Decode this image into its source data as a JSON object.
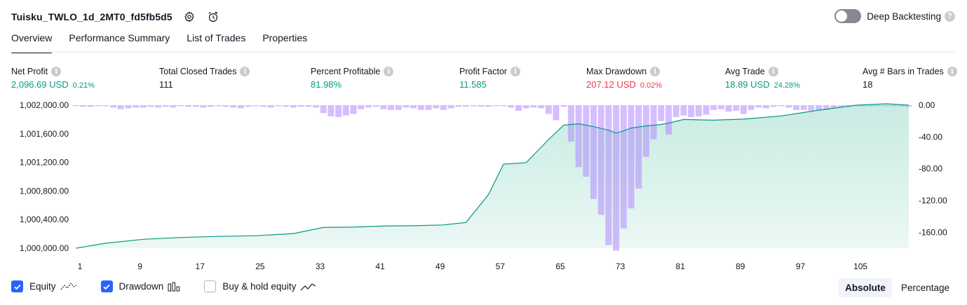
{
  "header": {
    "title": "Tuisku_TWLO_1d_2MT0_fd5fb5d5",
    "deep_backtesting_label": "Deep Backtesting"
  },
  "tabs": [
    {
      "label": "Overview"
    },
    {
      "label": "Performance Summary"
    },
    {
      "label": "List of Trades"
    },
    {
      "label": "Properties"
    }
  ],
  "stats": {
    "net_profit": {
      "label": "Net Profit",
      "value": "2,096.69 USD",
      "pct": "0.21%"
    },
    "total_closed_trades": {
      "label": "Total Closed Trades",
      "value": "111"
    },
    "percent_profitable": {
      "label": "Percent Profitable",
      "value": "81.98%"
    },
    "profit_factor": {
      "label": "Profit Factor",
      "value": "11.585"
    },
    "max_drawdown": {
      "label": "Max Drawdown",
      "value": "207.12 USD",
      "pct": "0.02%"
    },
    "avg_trade": {
      "label": "Avg Trade",
      "value": "18.89 USD",
      "pct": "24.28%"
    },
    "avg_bars": {
      "label": "Avg # Bars in Trades",
      "value": "18"
    }
  },
  "controls": {
    "equity_label": "Equity",
    "drawdown_label": "Drawdown",
    "buy_hold_label": "Buy & hold equity",
    "absolute_label": "Absolute",
    "percentage_label": "Percentage"
  },
  "colors": {
    "green": "#089981",
    "red": "#f23645",
    "accent": "#2962ff",
    "drawdown": "#b388ff",
    "equity_fill": "#c8ebe2"
  },
  "chart_data": {
    "type": "area",
    "x_ticks": [
      "1",
      "9",
      "17",
      "25",
      "33",
      "41",
      "49",
      "57",
      "65",
      "73",
      "81",
      "89",
      "97",
      "105"
    ],
    "left_ticks": [
      "1,002,000.00",
      "1,001,600.00",
      "1,001,200.00",
      "1,000,800.00",
      "1,000,400.00",
      "1,000,000.00"
    ],
    "right_ticks": [
      "0.00",
      "-40.00",
      "-80.00",
      "-120.00",
      "-160.00"
    ],
    "y_left_range": [
      1000000,
      1002000
    ],
    "y_right_range": [
      -180,
      0
    ],
    "x_range": [
      1,
      112
    ],
    "equity": [
      [
        1,
        1000000
      ],
      [
        5,
        1000070
      ],
      [
        10,
        1000125
      ],
      [
        15,
        1000150
      ],
      [
        20,
        1000165
      ],
      [
        25,
        1000175
      ],
      [
        30,
        1000205
      ],
      [
        34,
        1000290
      ],
      [
        38,
        1000295
      ],
      [
        42,
        1000310
      ],
      [
        46,
        1000315
      ],
      [
        50,
        1000325
      ],
      [
        53,
        1000360
      ],
      [
        56,
        1000750
      ],
      [
        58,
        1001175
      ],
      [
        61,
        1001195
      ],
      [
        64,
        1001520
      ],
      [
        66,
        1001720
      ],
      [
        68,
        1001740
      ],
      [
        70,
        1001700
      ],
      [
        72,
        1001650
      ],
      [
        73,
        1001610
      ],
      [
        74,
        1001640
      ],
      [
        75,
        1001680
      ],
      [
        77,
        1001710
      ],
      [
        79,
        1001730
      ],
      [
        80,
        1001750
      ],
      [
        82,
        1001800
      ],
      [
        86,
        1001790
      ],
      [
        90,
        1001805
      ],
      [
        95,
        1001850
      ],
      [
        100,
        1001930
      ],
      [
        105,
        1002000
      ],
      [
        109,
        1002020
      ],
      [
        112,
        1002000
      ]
    ],
    "drawdown": [
      [
        1,
        -1
      ],
      [
        2,
        -2
      ],
      [
        3,
        -2
      ],
      [
        4,
        -1
      ],
      [
        5,
        -1
      ],
      [
        6,
        -3
      ],
      [
        7,
        -5
      ],
      [
        8,
        -4
      ],
      [
        9,
        -3
      ],
      [
        10,
        -3
      ],
      [
        11,
        -2
      ],
      [
        12,
        -3
      ],
      [
        13,
        -2
      ],
      [
        14,
        -3
      ],
      [
        15,
        -1
      ],
      [
        16,
        -2
      ],
      [
        17,
        -2
      ],
      [
        18,
        -3
      ],
      [
        19,
        -2
      ],
      [
        20,
        -1
      ],
      [
        21,
        -2
      ],
      [
        22,
        -3
      ],
      [
        23,
        -4
      ],
      [
        24,
        -2
      ],
      [
        25,
        -1
      ],
      [
        26,
        -2
      ],
      [
        27,
        -3
      ],
      [
        28,
        -1
      ],
      [
        29,
        -2
      ],
      [
        30,
        -3
      ],
      [
        31,
        -2
      ],
      [
        32,
        -2
      ],
      [
        33,
        -3
      ],
      [
        34,
        -10
      ],
      [
        35,
        -14
      ],
      [
        36,
        -15
      ],
      [
        37,
        -13
      ],
      [
        38,
        -11
      ],
      [
        39,
        -5
      ],
      [
        40,
        -3
      ],
      [
        41,
        -2
      ],
      [
        42,
        -5
      ],
      [
        43,
        -6
      ],
      [
        44,
        -6
      ],
      [
        45,
        -3
      ],
      [
        46,
        -4
      ],
      [
        47,
        -6
      ],
      [
        48,
        -6
      ],
      [
        49,
        -4
      ],
      [
        50,
        -6
      ],
      [
        51,
        -4
      ],
      [
        52,
        -2
      ],
      [
        53,
        -2
      ],
      [
        54,
        -1
      ],
      [
        55,
        -2
      ],
      [
        56,
        -2
      ],
      [
        57,
        -1
      ],
      [
        58,
        -1
      ],
      [
        59,
        -3
      ],
      [
        60,
        -7
      ],
      [
        61,
        -4
      ],
      [
        62,
        -3
      ],
      [
        63,
        -4
      ],
      [
        64,
        -11
      ],
      [
        65,
        -19
      ],
      [
        66,
        -2
      ],
      [
        67,
        -46
      ],
      [
        68,
        -78
      ],
      [
        69,
        -90
      ],
      [
        70,
        -118
      ],
      [
        71,
        -138
      ],
      [
        72,
        -176
      ],
      [
        73,
        -183
      ],
      [
        74,
        -155
      ],
      [
        75,
        -130
      ],
      [
        76,
        -105
      ],
      [
        77,
        -65
      ],
      [
        78,
        -43
      ],
      [
        79,
        -20
      ],
      [
        80,
        -37
      ],
      [
        81,
        -15
      ],
      [
        82,
        -13
      ],
      [
        83,
        -15
      ],
      [
        84,
        -14
      ],
      [
        85,
        -12
      ],
      [
        86,
        -6
      ],
      [
        87,
        -5
      ],
      [
        88,
        -8
      ],
      [
        89,
        -7
      ],
      [
        90,
        -11
      ],
      [
        91,
        -6
      ],
      [
        92,
        -3
      ],
      [
        93,
        -4
      ],
      [
        94,
        -2
      ],
      [
        95,
        -1
      ],
      [
        96,
        -3
      ],
      [
        97,
        -6
      ],
      [
        98,
        -6
      ],
      [
        99,
        -7
      ],
      [
        100,
        -7
      ],
      [
        101,
        -6
      ],
      [
        102,
        -4
      ],
      [
        103,
        -3
      ],
      [
        104,
        -2
      ],
      [
        105,
        -1
      ],
      [
        106,
        -1
      ],
      [
        107,
        -1
      ],
      [
        108,
        -1
      ],
      [
        109,
        -1
      ],
      [
        110,
        -1
      ],
      [
        111,
        -1
      ],
      [
        112,
        -2
      ]
    ]
  }
}
